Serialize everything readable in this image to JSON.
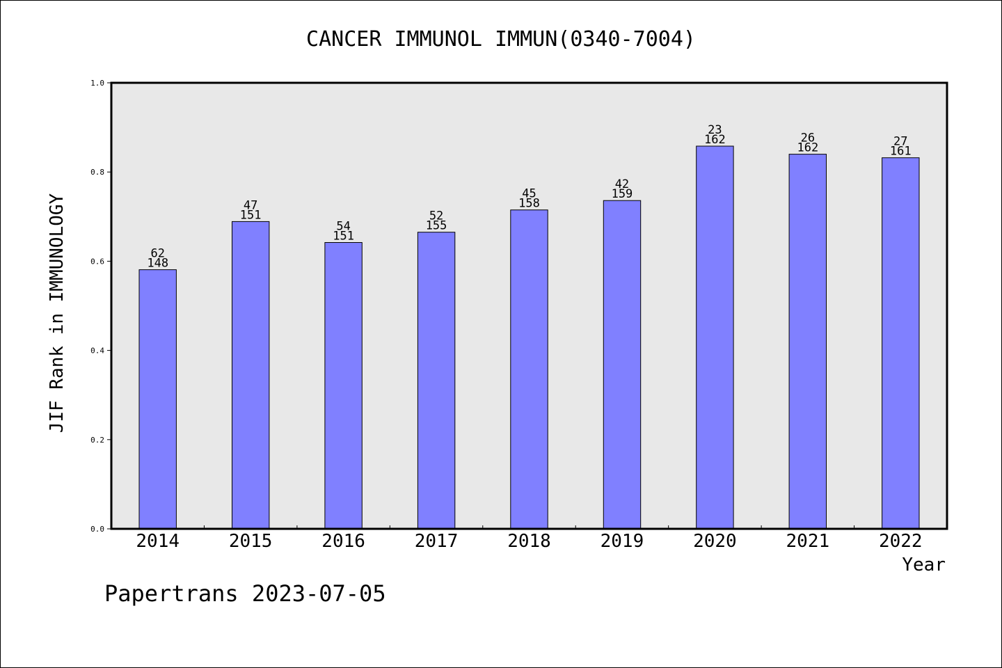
{
  "chart_data": {
    "type": "bar",
    "title": "CANCER IMMUNOL IMMUN(0340-7004)",
    "xlabel": "Year",
    "ylabel": "JIF Rank in IMMUNOLOGY",
    "ylim": [
      0,
      1.0
    ],
    "yticks": [
      "0.0",
      "0.2",
      "0.4",
      "0.6",
      "0.8",
      "1.0"
    ],
    "grid": false,
    "categories": [
      "2014",
      "2015",
      "2016",
      "2017",
      "2018",
      "2019",
      "2020",
      "2021",
      "2022"
    ],
    "values": [
      0.581,
      0.689,
      0.642,
      0.665,
      0.715,
      0.736,
      0.858,
      0.84,
      0.832
    ],
    "rank": [
      "62",
      "47",
      "54",
      "52",
      "45",
      "42",
      "23",
      "26",
      "27"
    ],
    "total": [
      "148",
      "151",
      "151",
      "155",
      "158",
      "159",
      "162",
      "162",
      "161"
    ],
    "colors": {
      "bar": "#8080ff",
      "plot_bg": "#e8e8e8",
      "axis": "#000000"
    }
  },
  "footer": "Papertrans 2023-07-05"
}
